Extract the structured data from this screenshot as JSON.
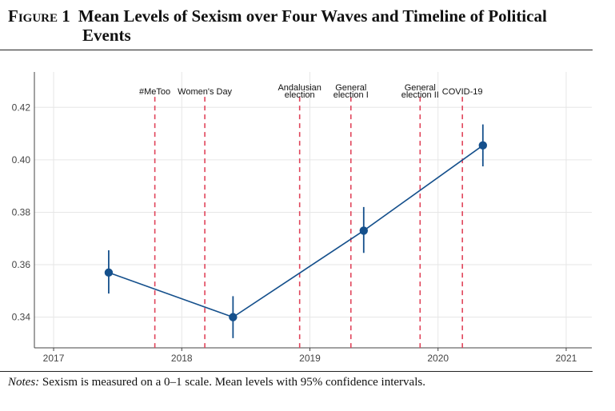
{
  "figure": {
    "number": "Figure 1",
    "title_line1": "Mean Levels of Sexism over Four Waves and Timeline of Political",
    "title_line2": "Events",
    "notes_label": "Notes:",
    "notes_text": "Sexism is measured on a 0–1 scale. Mean levels with 95% confidence intervals."
  },
  "chart_data": {
    "type": "line",
    "title": "Mean Levels of Sexism over Four Waves and Timeline of Political Events",
    "xlabel": "",
    "ylabel": "",
    "xlim": [
      2016.85,
      2021.2
    ],
    "ylim": [
      0.3283,
      0.4335
    ],
    "x_ticks": [
      2017,
      2018,
      2019,
      2020,
      2021
    ],
    "x_tick_labels": [
      "2017",
      "2018",
      "2019",
      "2020",
      "2021"
    ],
    "y_ticks": [
      0.34,
      0.36,
      0.38,
      0.4,
      0.42
    ],
    "y_tick_labels": [
      "0.34",
      "0.36",
      "0.38",
      "0.40",
      "0.42"
    ],
    "grid": true,
    "series_color": "#15508c",
    "event_color": "#e0445a",
    "series": [
      {
        "points": [
          {
            "x": 2017.43,
            "y": 0.357,
            "ci_low": 0.349,
            "ci_high": 0.3655
          },
          {
            "x": 2018.4,
            "y": 0.34,
            "ci_low": 0.332,
            "ci_high": 0.348
          },
          {
            "x": 2019.42,
            "y": 0.373,
            "ci_low": 0.3645,
            "ci_high": 0.382
          },
          {
            "x": 2020.35,
            "y": 0.4055,
            "ci_low": 0.3975,
            "ci_high": 0.4135
          }
        ]
      }
    ],
    "events": [
      {
        "x": 2017.79,
        "label_lines": [
          "#MeToo"
        ]
      },
      {
        "x": 2018.18,
        "label_lines": [
          "Women's Day"
        ]
      },
      {
        "x": 2018.92,
        "label_lines": [
          "Andalusian",
          "election"
        ]
      },
      {
        "x": 2019.32,
        "label_lines": [
          "General",
          "election I"
        ]
      },
      {
        "x": 2019.86,
        "label_lines": [
          "General",
          "election II"
        ]
      },
      {
        "x": 2020.19,
        "label_lines": [
          "COVID-19"
        ]
      }
    ]
  }
}
